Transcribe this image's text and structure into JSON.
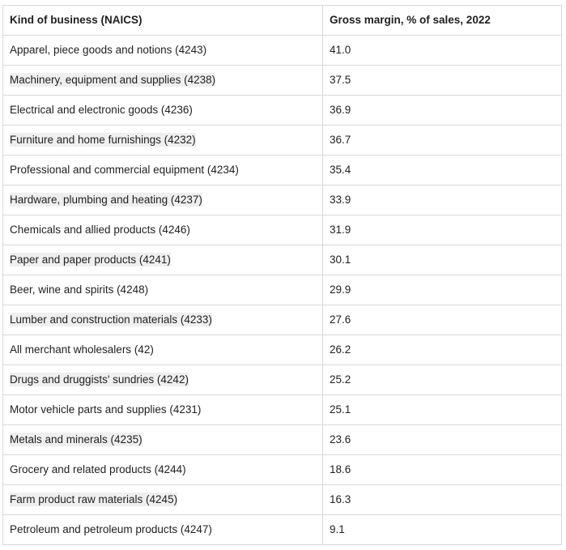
{
  "table": {
    "headers": [
      "Kind of business (NAICS)",
      "Gross margin, % of sales, 2022"
    ],
    "rows": [
      {
        "business": "Apparel, piece goods and notions (4243)",
        "margin": "41.0"
      },
      {
        "business": "Machinery, equipment and supplies (4238)",
        "margin": "37.5"
      },
      {
        "business": "Electrical and electronic goods (4236)",
        "margin": "36.9"
      },
      {
        "business": "Furniture and home furnishings (4232)",
        "margin": "36.7"
      },
      {
        "business": "Professional and commercial equipment (4234)",
        "margin": "35.4"
      },
      {
        "business": "Hardware, plumbing and heating (4237)",
        "margin": "33.9"
      },
      {
        "business": "Chemicals and allied products (4246)",
        "margin": "31.9"
      },
      {
        "business": "Paper and paper products (4241)",
        "margin": "30.1"
      },
      {
        "business": "Beer, wine and spirits (4248)",
        "margin": "29.9"
      },
      {
        "business": "Lumber and construction materials (4233)",
        "margin": "27.6"
      },
      {
        "business": "All merchant wholesalers (42)",
        "margin": "26.2"
      },
      {
        "business": "Drugs and druggists' sundries (4242)",
        "margin": "25.2"
      },
      {
        "business": "Motor vehicle parts and supplies (4231)",
        "margin": "25.1"
      },
      {
        "business": "Metals and minerals (4235)",
        "margin": "23.6"
      },
      {
        "business": "Grocery and related products (4244)",
        "margin": "18.6"
      },
      {
        "business": "Farm product raw materials (4245)",
        "margin": "16.3"
      },
      {
        "business": "Petroleum and petroleum products (4247)",
        "margin": "9.1"
      }
    ]
  }
}
